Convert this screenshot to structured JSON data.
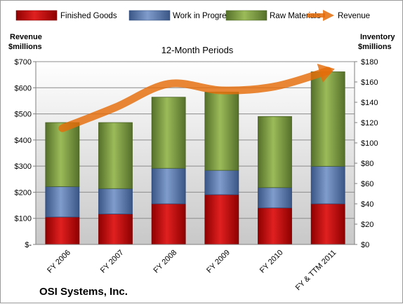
{
  "chart_data": {
    "type": "bar",
    "stacked": true,
    "title": "12-Month Periods",
    "categories": [
      "FY 2006",
      "FY 2007",
      "FY 2008",
      "FY 2009",
      "FY 2010",
      "FY & TTM 2011"
    ],
    "series": [
      {
        "name": "Finished Goods",
        "color": "#c00000",
        "axis": "right",
        "values": [
          27,
          30,
          40,
          49,
          36,
          40
        ]
      },
      {
        "name": "Work in Progress",
        "color": "#4f6fa8",
        "axis": "right",
        "values": [
          30,
          25,
          35,
          24,
          20,
          37
        ]
      },
      {
        "name": "Raw Materials",
        "color": "#77933c",
        "axis": "right",
        "values": [
          63,
          65,
          70,
          77,
          70,
          93
        ]
      },
      {
        "name": "Revenue",
        "color": "#e46c0a",
        "type": "line",
        "axis": "left",
        "values": [
          445,
          525,
          615,
          590,
          605,
          665
        ]
      }
    ],
    "left_axis": {
      "title_line1": "Revenue",
      "title_line2": "$millions",
      "range": [
        0,
        700
      ],
      "ticks": [
        "$-",
        "$100",
        "$200",
        "$300",
        "$400",
        "$500",
        "$600",
        "$700"
      ]
    },
    "right_axis": {
      "title_line1": "Inventory",
      "title_line2": "$millions",
      "range": [
        0,
        180
      ],
      "ticks": [
        "$0",
        "$20",
        "$40",
        "$60",
        "$80",
        "$100",
        "$120",
        "$140",
        "$160",
        "$180"
      ]
    },
    "legend_position": "top",
    "grid": true
  },
  "company_name": "OSI Systems, Inc."
}
